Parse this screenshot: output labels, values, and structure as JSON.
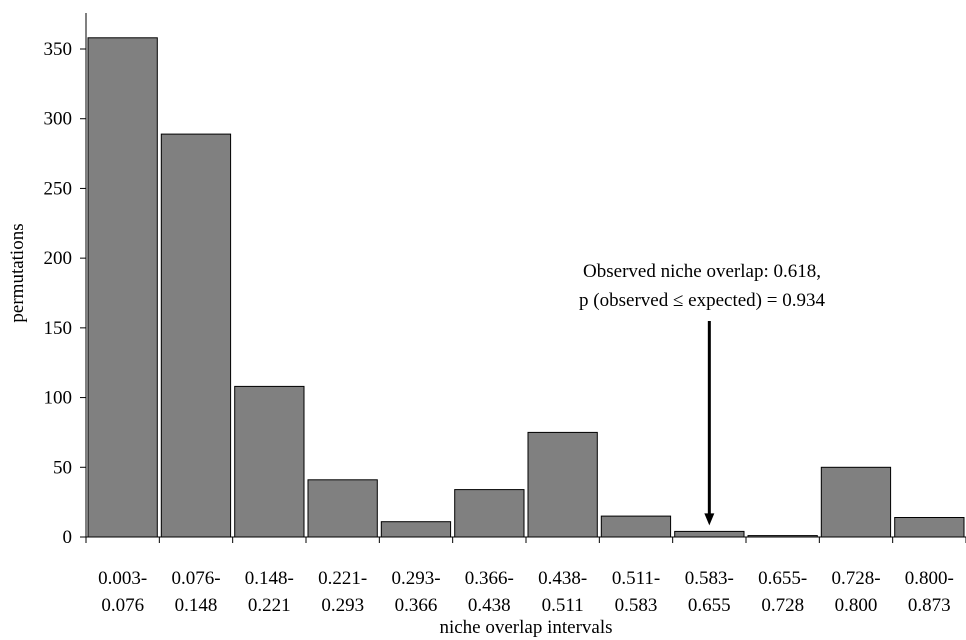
{
  "chart_data": {
    "type": "bar",
    "title": "",
    "xlabel": "niche overlap intervals",
    "ylabel": "permutations",
    "ylim": [
      0,
      350
    ],
    "yticks": [
      0,
      50,
      100,
      150,
      200,
      250,
      300,
      350
    ],
    "grid": false,
    "legend": "none",
    "bar_color": "#808080",
    "categories": [
      [
        "0.003-",
        "0.076"
      ],
      [
        "0.076-",
        "0.148"
      ],
      [
        "0.148-",
        "0.221"
      ],
      [
        "0.221-",
        "0.293"
      ],
      [
        "0.293-",
        "0.366"
      ],
      [
        "0.366-",
        "0.438"
      ],
      [
        "0.438-",
        "0.511"
      ],
      [
        "0.511-",
        "0.583"
      ],
      [
        "0.583-",
        "0.655"
      ],
      [
        "0.655-",
        "0.728"
      ],
      [
        "0.728-",
        "0.800"
      ],
      [
        "0.800-",
        "0.873"
      ]
    ],
    "values": [
      358,
      289,
      108,
      41,
      11,
      34,
      75,
      15,
      4,
      1,
      50,
      14
    ],
    "annotation": {
      "lines": [
        "Observed niche overlap: 0.618,",
        "p  (observed ≤ expected) = 0.934"
      ],
      "points_to_category": 8
    }
  }
}
